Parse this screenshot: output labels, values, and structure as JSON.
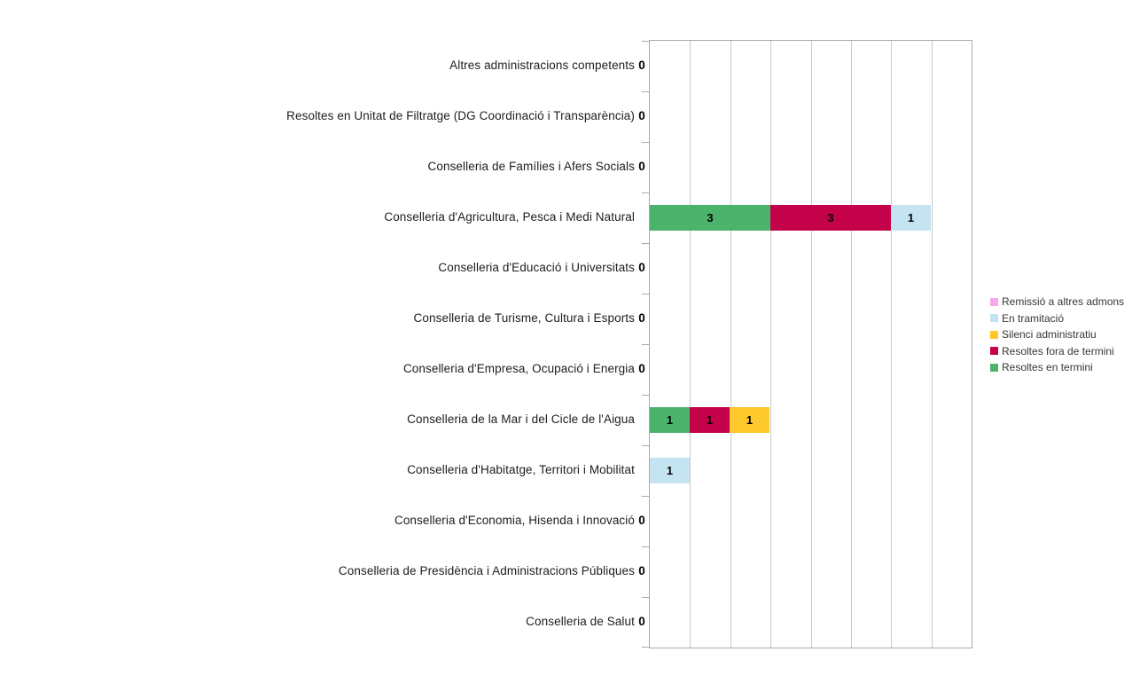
{
  "chart_data": {
    "type": "bar",
    "orientation": "horizontal",
    "stacked": true,
    "title": "",
    "xlabel": "",
    "ylabel": "",
    "xlim": [
      0,
      8
    ],
    "grid": true,
    "gridline_interval": 1,
    "legend_position": "right",
    "zero_total_label": "0",
    "stack_order_note": "segments drawn left-to-right in reverse legend order (Resoltes en termini first)",
    "categories": [
      "Altres administracions competents",
      "Resoltes en Unitat de Filtratge (DG Coordinació i Transparència)",
      "Conselleria de Famílies i Afers Socials",
      "Conselleria d'Agricultura, Pesca i Medi Natural",
      "Conselleria d'Educació i Universitats",
      "Conselleria de Turisme, Cultura i Esports",
      "Conselleria d'Empresa, Ocupació i Energia",
      "Conselleria de la Mar i del Cicle de l'Aigua",
      "Conselleria d'Habitatge, Territori i Mobilitat",
      "Conselleria d'Economia, Hisenda i Innovació",
      "Conselleria de Presidència i Administracions Públiques",
      "Conselleria de Salut"
    ],
    "series": [
      {
        "name": "Remissió a altres admons",
        "color": "#f4a9ee",
        "values": [
          0,
          0,
          0,
          0,
          0,
          0,
          0,
          0,
          0,
          0,
          0,
          0
        ]
      },
      {
        "name": "En tramitació",
        "color": "#c5e4f1",
        "values": [
          0,
          0,
          0,
          1,
          0,
          0,
          0,
          0,
          1,
          0,
          0,
          0
        ]
      },
      {
        "name": "Silenci administratiu",
        "color": "#fdc92d",
        "values": [
          0,
          0,
          0,
          0,
          0,
          0,
          0,
          1,
          0,
          0,
          0,
          0
        ]
      },
      {
        "name": "Resoltes fora de termini",
        "color": "#c4024a",
        "values": [
          0,
          0,
          0,
          3,
          0,
          0,
          0,
          1,
          0,
          0,
          0,
          0
        ]
      },
      {
        "name": "Resoltes en termini",
        "color": "#4cb36c",
        "values": [
          0,
          0,
          0,
          3,
          0,
          0,
          0,
          1,
          0,
          0,
          0,
          0
        ]
      }
    ]
  },
  "colors": {
    "background": "#ffffff",
    "plot_border": "#a9a9a9",
    "gridline": "#c9c9c9",
    "label_text": "#1d1d1d",
    "legend_text": "#3a3733",
    "segment_label": "#000000"
  }
}
